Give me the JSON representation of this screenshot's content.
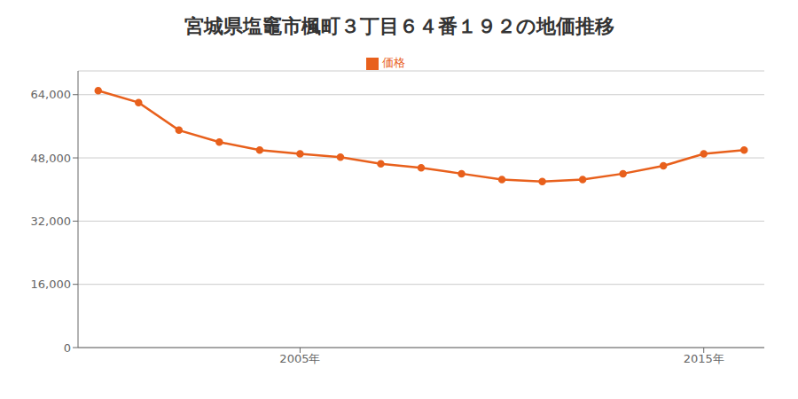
{
  "chart_data": {
    "type": "line",
    "title": "宮城県塩竈市楓町３丁目６４番１９２の地価推移",
    "x": [
      2000,
      2001,
      2002,
      2003,
      2004,
      2005,
      2006,
      2007,
      2008,
      2009,
      2010,
      2011,
      2012,
      2013,
      2014,
      2015,
      2016
    ],
    "series": [
      {
        "name": "価格",
        "color": "#e8601c",
        "marker": "circle",
        "values": [
          65000,
          62000,
          55000,
          52000,
          50000,
          49000,
          48200,
          46500,
          45500,
          44000,
          42500,
          42000,
          42500,
          44000,
          46000,
          49000,
          50000
        ]
      }
    ],
    "xlim": [
      1999.5,
      2016.5
    ],
    "xticks": [
      {
        "value": 2005,
        "label": "2005年"
      },
      {
        "value": 2015,
        "label": "2015年"
      }
    ],
    "ylim": [
      0,
      70000
    ],
    "yticks": [
      0,
      {
        "value": 16000,
        "label": "16,000"
      },
      {
        "value": 32000,
        "label": "32,000"
      },
      {
        "value": 48000,
        "label": "48,000"
      },
      {
        "value": 64000,
        "label": "64,000"
      }
    ],
    "grid": true,
    "legend": "top"
  }
}
